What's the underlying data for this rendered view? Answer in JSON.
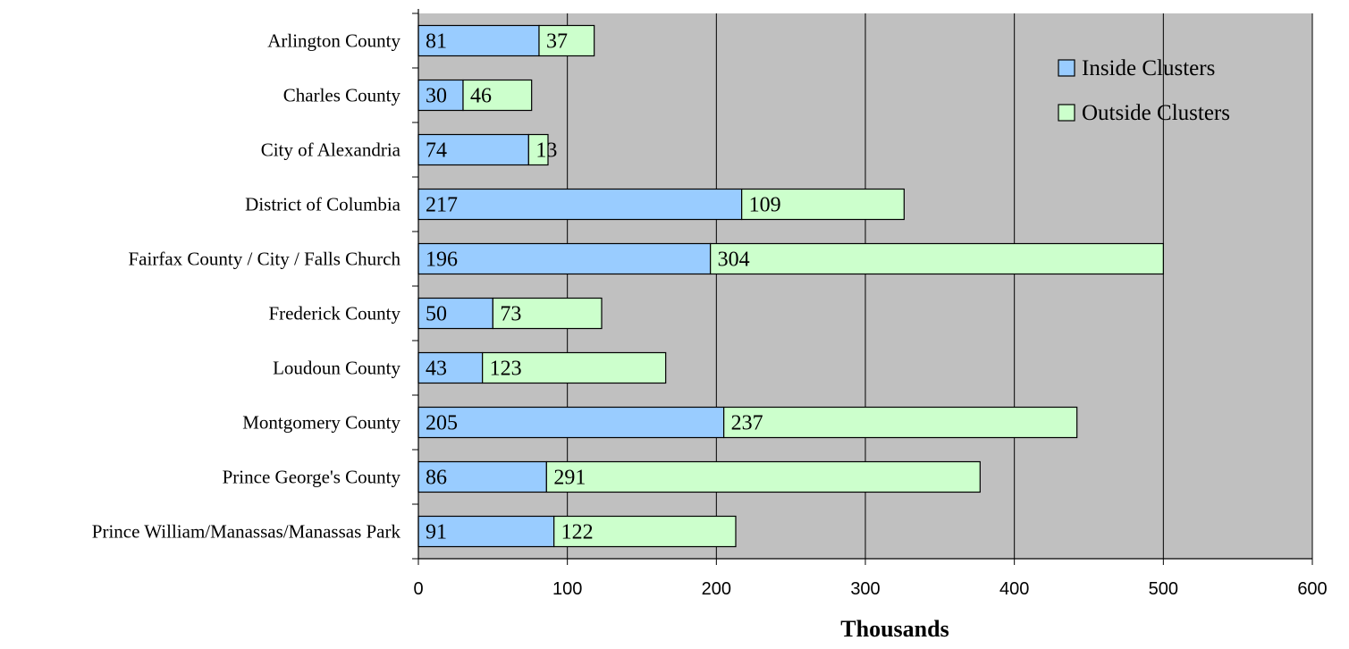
{
  "chart_data": {
    "type": "bar",
    "orientation": "horizontal",
    "stacked": true,
    "categories": [
      "Arlington County",
      "Charles County",
      "City of Alexandria",
      "District of Columbia",
      "Fairfax County / City / Falls Church",
      "Frederick County",
      "Loudoun County",
      "Montgomery County",
      "Prince George's County",
      "Prince William/Manassas/Manassas Park"
    ],
    "series": [
      {
        "name": "Inside Clusters",
        "color": "#99ccff",
        "values": [
          81,
          30,
          74,
          217,
          196,
          50,
          43,
          205,
          86,
          91
        ]
      },
      {
        "name": "Outside Clusters",
        "color": "#ccffcc",
        "values": [
          37,
          46,
          13,
          109,
          304,
          73,
          123,
          237,
          291,
          122
        ]
      }
    ],
    "xlabel": "Thousands",
    "xlim": [
      0,
      600
    ],
    "xticks": [
      0,
      100,
      200,
      300,
      400,
      500,
      600
    ],
    "grid": "vertical",
    "plot_background": "#c0c0c0",
    "legend_position": "top-right"
  }
}
